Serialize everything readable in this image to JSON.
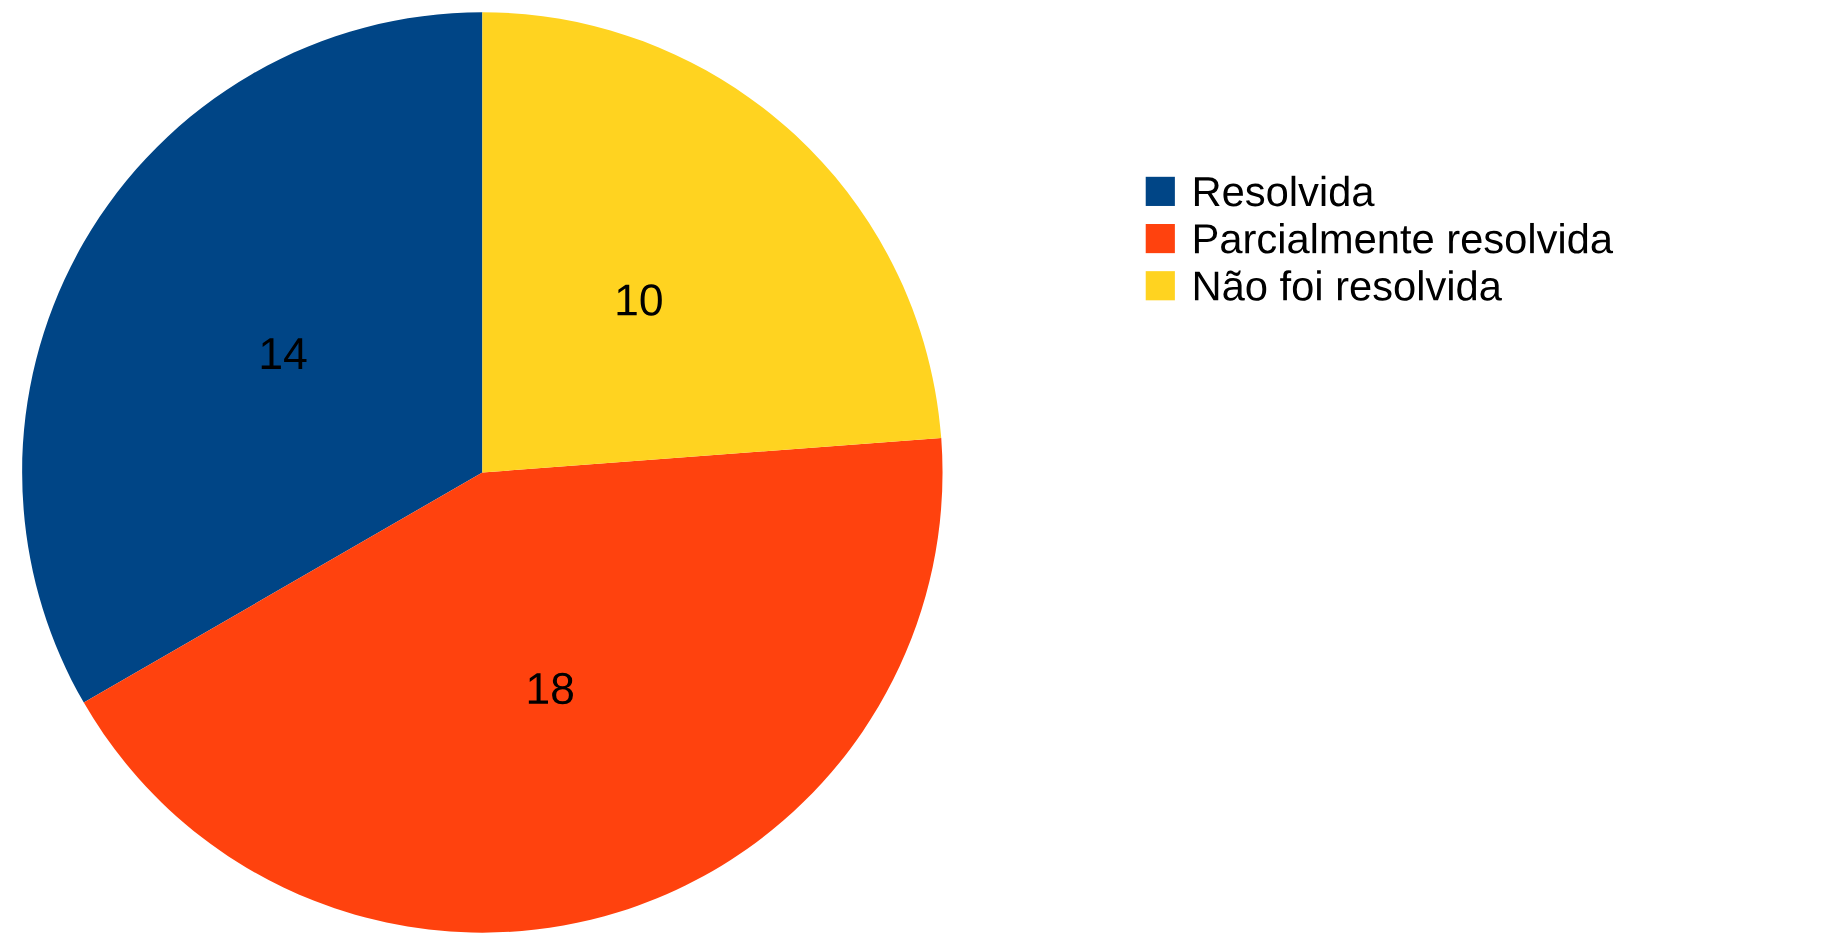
{
  "chart_data": {
    "type": "pie",
    "categories": [
      "Resolvida",
      "Parcialmente resolvida",
      "Não foi resolvida"
    ],
    "values": [
      14,
      18,
      10
    ],
    "colors": [
      "#004586",
      "#ff420e",
      "#ffd320"
    ],
    "data_labels": true,
    "legend": "right"
  }
}
